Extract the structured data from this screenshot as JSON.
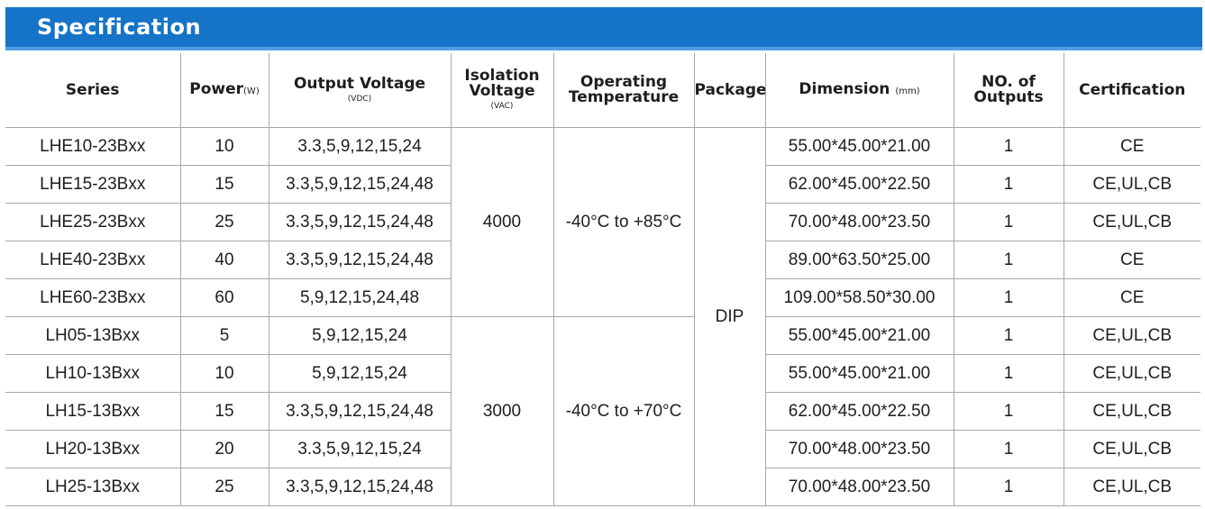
{
  "title": "Specification",
  "headers": {
    "series": "Series",
    "power": "Power",
    "power_unit": "(W)",
    "output_voltage": "Output Voltage",
    "output_voltage_unit": "(VDC)",
    "isolation_line1": "Isolation",
    "isolation_line2": "Voltage",
    "isolation_unit": "(VAC)",
    "operating_line1": "Operating",
    "operating_line2": "Temperature",
    "package": "Package",
    "dimension": "Dimension",
    "dimension_unit": "(mm)",
    "outputs_line1": "NO. of",
    "outputs_line2": "Outputs",
    "certification": "Certification"
  },
  "groups": [
    {
      "isolation": "4000",
      "temperature": "-40°C to +85°C"
    },
    {
      "isolation": "3000",
      "temperature": "-40°C to +70°C"
    }
  ],
  "package": "DIP",
  "rows": [
    {
      "series": "LHE10-23Bxx",
      "power": "10",
      "voltage": "3.3,5,9,12,15,24",
      "dimension": "55.00*45.00*21.00",
      "outputs": "1",
      "cert": "CE"
    },
    {
      "series": "LHE15-23Bxx",
      "power": "15",
      "voltage": "3.3,5,9,12,15,24,48",
      "dimension": "62.00*45.00*22.50",
      "outputs": "1",
      "cert": "CE,UL,CB"
    },
    {
      "series": "LHE25-23Bxx",
      "power": "25",
      "voltage": "3.3,5,9,12,15,24,48",
      "dimension": "70.00*48.00*23.50",
      "outputs": "1",
      "cert": "CE,UL,CB"
    },
    {
      "series": "LHE40-23Bxx",
      "power": "40",
      "voltage": "3.3,5,9,12,15,24,48",
      "dimension": "89.00*63.50*25.00",
      "outputs": "1",
      "cert": "CE"
    },
    {
      "series": "LHE60-23Bxx",
      "power": "60",
      "voltage": "5,9,12,15,24,48",
      "dimension": "109.00*58.50*30.00",
      "outputs": "1",
      "cert": "CE"
    },
    {
      "series": "LH05-13Bxx",
      "power": "5",
      "voltage": "5,9,12,15,24",
      "dimension": "55.00*45.00*21.00",
      "outputs": "1",
      "cert": "CE,UL,CB"
    },
    {
      "series": "LH10-13Bxx",
      "power": "10",
      "voltage": "5,9,12,15,24",
      "dimension": "55.00*45.00*21.00",
      "outputs": "1",
      "cert": "CE,UL,CB"
    },
    {
      "series": "LH15-13Bxx",
      "power": "15",
      "voltage": "3.3,5,9,12,15,24,48",
      "dimension": "62.00*45.00*22.50",
      "outputs": "1",
      "cert": "CE,UL,CB"
    },
    {
      "series": "LH20-13Bxx",
      "power": "20",
      "voltage": "3.3,5,9,12,15,24",
      "dimension": "70.00*48.00*23.50",
      "outputs": "1",
      "cert": "CE,UL,CB"
    },
    {
      "series": "LH25-13Bxx",
      "power": "25",
      "voltage": "3.3,5,9,12,15,24,48",
      "dimension": "70.00*48.00*23.50",
      "outputs": "1",
      "cert": "CE,UL,CB"
    }
  ],
  "colors": {
    "header_bar": "#1574c8",
    "header_stripe": "#4f9ee3",
    "grid": "#a8a8a8",
    "text": "#1e1e1e"
  }
}
